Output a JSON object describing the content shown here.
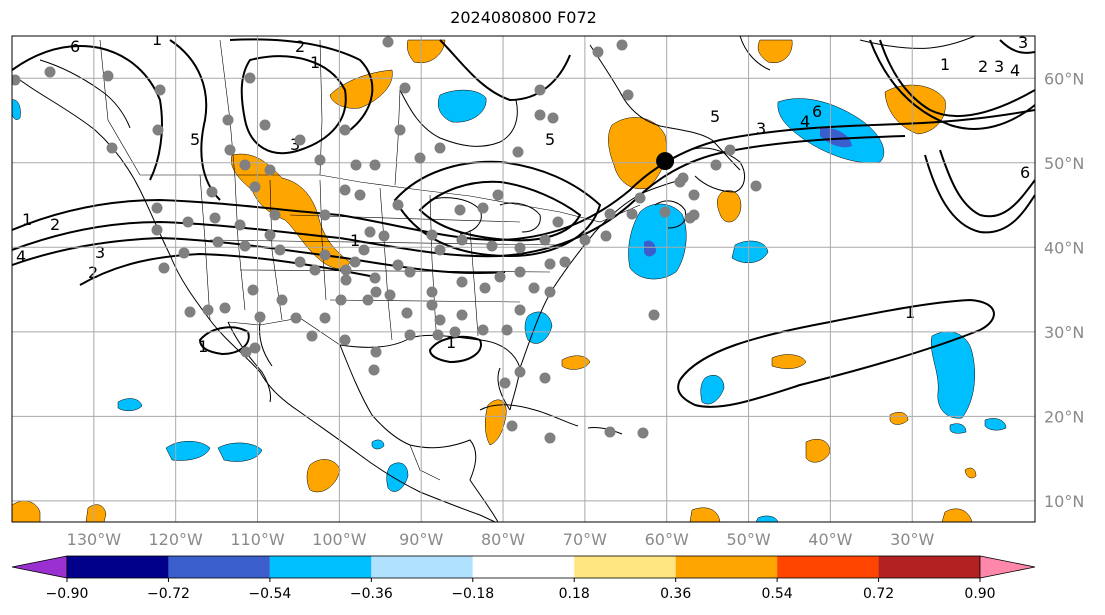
{
  "title": "2024080800 F072",
  "map": {
    "lon_range": [
      -140,
      -15
    ],
    "lat_range": [
      7.5,
      65
    ],
    "lat_labels": [
      "60°N",
      "50°N",
      "40°N",
      "30°N",
      "20°N",
      "10°N"
    ],
    "lat_values": [
      60,
      50,
      40,
      30,
      20,
      10
    ],
    "lon_labels": [
      "130°W",
      "120°W",
      "110°W",
      "100°W",
      "90°W",
      "80°W",
      "70°W",
      "60°W",
      "50°W",
      "40°W",
      "30°W"
    ],
    "lon_values": [
      -130,
      -120,
      -110,
      -100,
      -90,
      -80,
      -70,
      -60,
      -50,
      -40,
      -30
    ],
    "contour_labels": [
      "1",
      "2",
      "3",
      "4",
      "5",
      "6"
    ],
    "marker": {
      "lon": -60.2,
      "lat": 50.2
    }
  },
  "colorbar": {
    "tick_labels": [
      "−0.90",
      "−0.72",
      "−0.54",
      "−0.36",
      "−0.18",
      "0.18",
      "0.36",
      "0.54",
      "0.72",
      "0.90"
    ],
    "colors": {
      "under": "#9b30d0",
      "bins": [
        "#00008b",
        "#3a5fcd",
        "#00bfff",
        "#b0e2ff",
        "#ffffff",
        "#ffe680",
        "#ffa500",
        "#ff4500",
        "#b22222"
      ],
      "over": "#ff88aa"
    }
  },
  "colors": {
    "pos_fill": "#ffa500",
    "neg_fill": "#00bfff",
    "neg_core": "#3a5fcd",
    "station_dot": "#808080",
    "grid": "#a9a9a9"
  }
}
